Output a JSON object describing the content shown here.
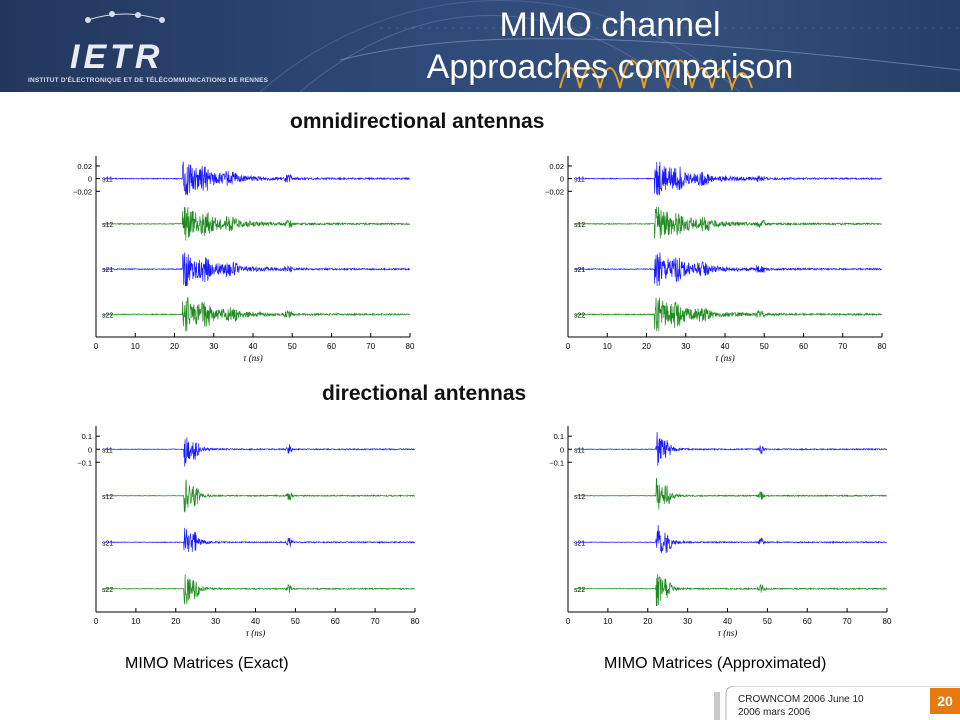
{
  "header": {
    "logo_text": "IETR",
    "institute": "INSTITUT D'ÉLECTRONIQUE ET DE TÉLÉCOMMUNICATIONS DE RENNES",
    "title_line1": "MIMO channel",
    "title_line2": "Approaches comparison"
  },
  "sections": {
    "omni": "omnidirectional antennas",
    "directional": "directional antennas"
  },
  "captions": {
    "exact": "MIMO Matrices (Exact)",
    "approx": "MIMO Matrices (Approximated)"
  },
  "footer": {
    "line1": "CROWNCOM 2006 June 10",
    "line2": "2006 mars 2006",
    "page": "20"
  },
  "colors": {
    "banner": "#2f4a78",
    "blue_trace": "#1a1aff",
    "green_trace": "#1f8a1f",
    "page_badge": "#e8790e"
  },
  "chart_data": [
    {
      "type": "line",
      "group": "omnidirectional antennas",
      "variant": "exact",
      "xlabel": "τ (ns)",
      "x_ticks": [
        0,
        10,
        20,
        30,
        40,
        50,
        60,
        70,
        80
      ],
      "xlim": [
        0,
        80
      ],
      "y_ticks": [
        "0.02",
        "0",
        "−0.02"
      ],
      "amplitude": 0.02,
      "series": [
        {
          "name": "s11",
          "color": "#1a1aff"
        },
        {
          "name": "s12",
          "color": "#1f8a1f"
        },
        {
          "name": "s21",
          "color": "#1a1aff"
        },
        {
          "name": "s22",
          "color": "#1f8a1f"
        }
      ]
    },
    {
      "type": "line",
      "group": "omnidirectional antennas",
      "variant": "approximated",
      "xlabel": "τ (ns)",
      "x_ticks": [
        0,
        10,
        20,
        30,
        40,
        50,
        60,
        70,
        80
      ],
      "xlim": [
        0,
        80
      ],
      "y_ticks": [
        "0.02",
        "0",
        "−0.02"
      ],
      "amplitude": 0.02,
      "series": [
        {
          "name": "s11",
          "color": "#1a1aff"
        },
        {
          "name": "s12",
          "color": "#1f8a1f"
        },
        {
          "name": "s21",
          "color": "#1a1aff"
        },
        {
          "name": "s22",
          "color": "#1f8a1f"
        }
      ]
    },
    {
      "type": "line",
      "group": "directional antennas",
      "variant": "exact",
      "xlabel": "τ (ns)",
      "x_ticks": [
        0,
        10,
        20,
        30,
        40,
        50,
        60,
        70,
        80
      ],
      "xlim": [
        0,
        80
      ],
      "y_ticks": [
        "0.1",
        "0",
        "−0.1"
      ],
      "amplitude": 0.1,
      "series": [
        {
          "name": "s11",
          "color": "#1a1aff"
        },
        {
          "name": "s12",
          "color": "#1f8a1f"
        },
        {
          "name": "s21",
          "color": "#1a1aff"
        },
        {
          "name": "s22",
          "color": "#1f8a1f"
        }
      ]
    },
    {
      "type": "line",
      "group": "directional antennas",
      "variant": "approximated",
      "xlabel": "τ (ns)",
      "x_ticks": [
        0,
        10,
        20,
        30,
        40,
        50,
        60,
        70,
        80
      ],
      "xlim": [
        0,
        80
      ],
      "y_ticks": [
        "0.1",
        "0",
        "−0.1"
      ],
      "amplitude": 0.1,
      "series": [
        {
          "name": "s11",
          "color": "#1a1aff"
        },
        {
          "name": "s12",
          "color": "#1f8a1f"
        },
        {
          "name": "s21",
          "color": "#1a1aff"
        },
        {
          "name": "s22",
          "color": "#1f8a1f"
        }
      ]
    }
  ]
}
